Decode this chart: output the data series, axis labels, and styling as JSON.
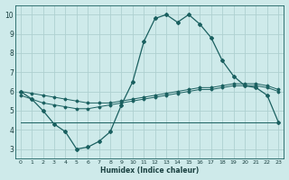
{
  "xlabel": "Humidex (Indice chaleur)",
  "bg_color": "#ceeaea",
  "grid_color": "#aed0d0",
  "line_color": "#1a6060",
  "xlim": [
    -0.5,
    23.5
  ],
  "ylim": [
    2.5,
    10.5
  ],
  "xtick_labels": [
    "0",
    "1",
    "2",
    "3",
    "4",
    "5",
    "6",
    "7",
    "8",
    "9",
    "10",
    "11",
    "12",
    "13",
    "14",
    "15",
    "16",
    "17",
    "18",
    "19",
    "20",
    "21",
    "22",
    "23"
  ],
  "ytick_labels": [
    "3",
    "4",
    "5",
    "6",
    "7",
    "8",
    "9",
    "10"
  ],
  "series1_x": [
    0,
    1,
    2,
    3,
    4,
    5,
    6,
    7,
    8,
    9,
    10,
    11,
    12,
    13,
    14,
    15,
    16,
    17,
    18,
    19,
    20,
    21,
    22,
    23
  ],
  "series1_y": [
    6.0,
    5.6,
    5.0,
    4.3,
    3.9,
    3.0,
    3.1,
    3.4,
    3.9,
    5.3,
    6.5,
    8.6,
    9.8,
    10.0,
    9.6,
    10.0,
    9.5,
    8.8,
    7.6,
    6.8,
    6.3,
    6.2,
    5.8,
    4.4
  ],
  "series2_x": [
    0,
    1,
    2,
    3,
    4,
    5,
    6,
    7,
    8,
    9,
    10,
    11,
    12,
    13,
    14,
    15,
    16,
    17,
    18,
    19,
    20,
    21,
    22,
    23
  ],
  "series2_y": [
    5.8,
    5.6,
    5.4,
    5.3,
    5.2,
    5.1,
    5.1,
    5.2,
    5.3,
    5.4,
    5.5,
    5.6,
    5.7,
    5.8,
    5.9,
    6.0,
    6.1,
    6.1,
    6.2,
    6.3,
    6.3,
    6.3,
    6.2,
    6.0
  ],
  "series3_x": [
    0,
    23
  ],
  "series3_y": [
    4.4,
    4.4
  ],
  "series4_x": [
    0,
    1,
    2,
    3,
    4,
    5,
    6,
    7,
    8,
    9,
    10,
    11,
    12,
    13,
    14,
    15,
    16,
    17,
    18,
    19,
    20,
    21,
    22,
    23
  ],
  "series4_y": [
    6.0,
    5.9,
    5.8,
    5.7,
    5.6,
    5.5,
    5.4,
    5.4,
    5.4,
    5.5,
    5.6,
    5.7,
    5.8,
    5.9,
    6.0,
    6.1,
    6.2,
    6.2,
    6.3,
    6.4,
    6.4,
    6.4,
    6.3,
    6.1
  ]
}
